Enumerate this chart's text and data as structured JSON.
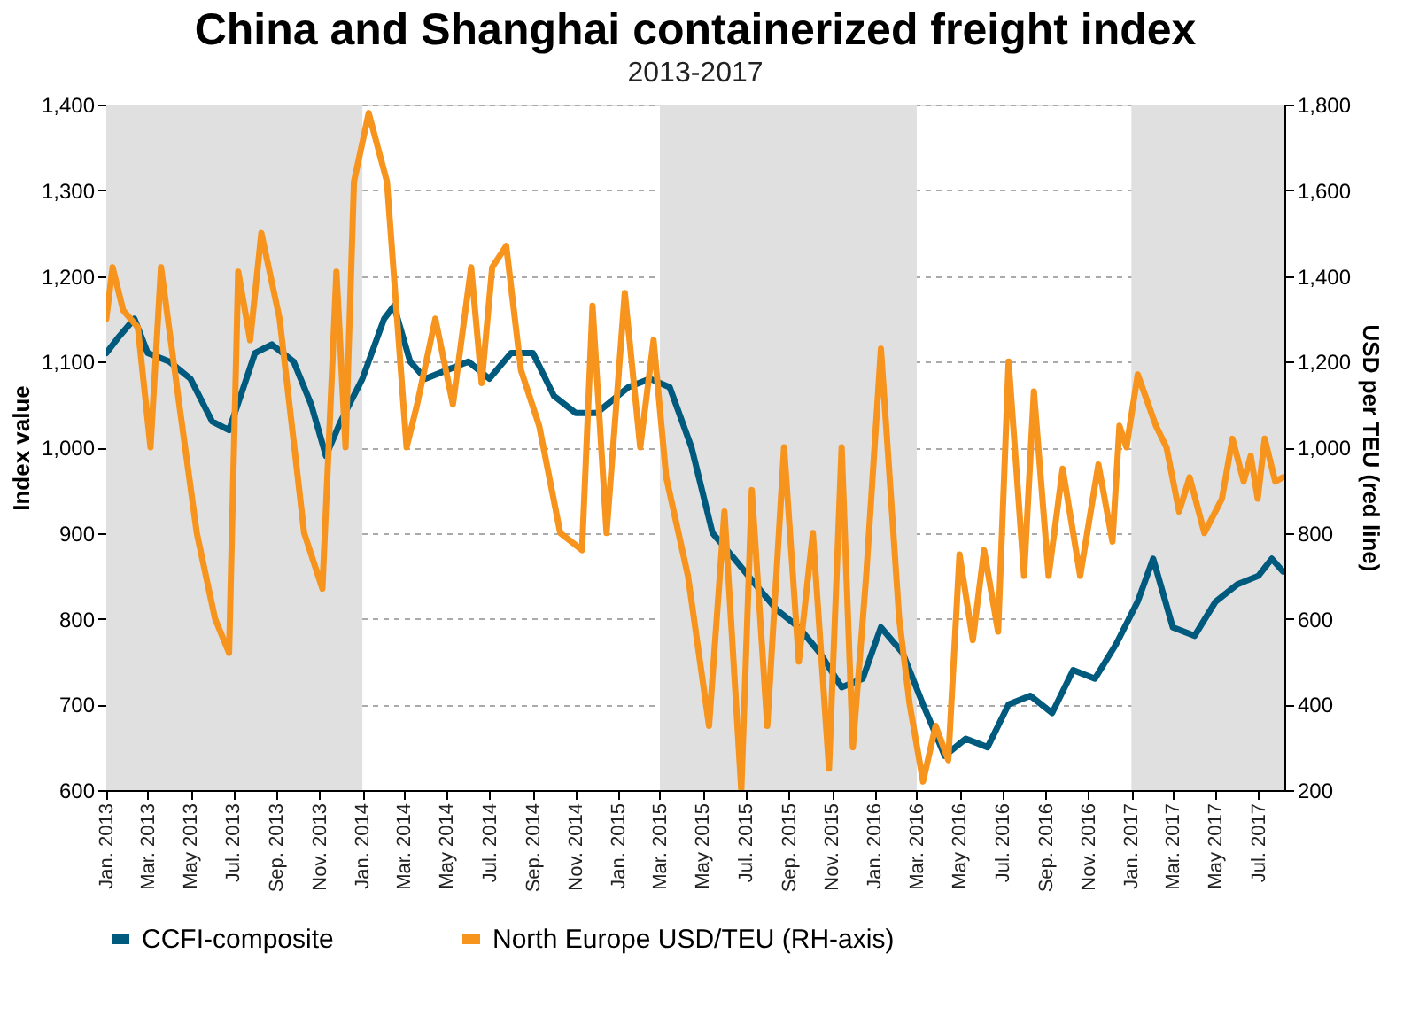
{
  "chart_data": {
    "type": "line",
    "title": "China and Shanghai containerized freight index",
    "subtitle": "2013-2017",
    "ylabel": "Index value",
    "y2label": "USD per TEU (red line)",
    "xlim": [
      "2013-01-01",
      "2017-08-07"
    ],
    "xticks": [
      {
        "value": "2013-01-01",
        "label": "Jan. 2013"
      },
      {
        "value": "2013-03-01",
        "label": "Mar. 2013"
      },
      {
        "value": "2013-05-01",
        "label": "May 2013"
      },
      {
        "value": "2013-07-01",
        "label": "Jul. 2013"
      },
      {
        "value": "2013-09-01",
        "label": "Sep. 2013"
      },
      {
        "value": "2013-11-01",
        "label": "Nov. 2013"
      },
      {
        "value": "2014-01-01",
        "label": "Jan. 2014"
      },
      {
        "value": "2014-03-01",
        "label": "Mar. 2014"
      },
      {
        "value": "2014-05-01",
        "label": "May 2014"
      },
      {
        "value": "2014-07-01",
        "label": "Jul. 2014"
      },
      {
        "value": "2014-09-01",
        "label": "Sep. 2014"
      },
      {
        "value": "2014-11-01",
        "label": "Nov. 2014"
      },
      {
        "value": "2015-01-01",
        "label": "Jan. 2015"
      },
      {
        "value": "2015-03-01",
        "label": "Mar. 2015"
      },
      {
        "value": "2015-05-01",
        "label": "May 2015"
      },
      {
        "value": "2015-07-01",
        "label": "Jul. 2015"
      },
      {
        "value": "2015-09-01",
        "label": "Sep. 2015"
      },
      {
        "value": "2015-11-01",
        "label": "Nov. 2015"
      },
      {
        "value": "2016-01-01",
        "label": "Jan. 2016"
      },
      {
        "value": "2016-03-01",
        "label": "Mar. 2016"
      },
      {
        "value": "2016-05-01",
        "label": "May 2016"
      },
      {
        "value": "2016-07-01",
        "label": "Jul. 2016"
      },
      {
        "value": "2016-09-01",
        "label": "Sep. 2016"
      },
      {
        "value": "2016-11-01",
        "label": "Nov. 2016"
      },
      {
        "value": "2017-01-01",
        "label": "Jan. 2017"
      },
      {
        "value": "2017-03-01",
        "label": "Mar. 2017"
      },
      {
        "value": "2017-05-01",
        "label": "May 2017"
      },
      {
        "value": "2017-07-01",
        "label": "Jul. 2017"
      }
    ],
    "ylim": [
      600,
      1400
    ],
    "yticks": [
      {
        "value": 600,
        "label": "600"
      },
      {
        "value": 700,
        "label": "700"
      },
      {
        "value": 800,
        "label": "800"
      },
      {
        "value": 900,
        "label": "900"
      },
      {
        "value": 1000,
        "label": "1,000"
      },
      {
        "value": 1100,
        "label": "1,100"
      },
      {
        "value": 1200,
        "label": "1,200"
      },
      {
        "value": 1300,
        "label": "1,300"
      },
      {
        "value": 1400,
        "label": "1,400"
      }
    ],
    "y2lim": [
      200,
      1800
    ],
    "y2ticks": [
      {
        "value": 200,
        "label": "200"
      },
      {
        "value": 400,
        "label": "400"
      },
      {
        "value": 600,
        "label": "600"
      },
      {
        "value": 800,
        "label": "800"
      },
      {
        "value": 1000,
        "label": "1,000"
      },
      {
        "value": 1200,
        "label": "1,200"
      },
      {
        "value": 1400,
        "label": "1,400"
      },
      {
        "value": 1600,
        "label": "1,600"
      },
      {
        "value": 1800,
        "label": "1,800"
      }
    ],
    "grid": "y",
    "legend": "bottom",
    "line_style": "solid",
    "marker": "none",
    "bands": [
      {
        "axis": "x",
        "from": "2013-01-01",
        "to": "2014-01-01",
        "color": "#e0e0e0"
      },
      {
        "axis": "x",
        "from": "2015-03-01",
        "to": "2016-03-01",
        "color": "#e0e0e0"
      },
      {
        "axis": "x",
        "from": "2017-01-01",
        "to": "2017-08-07",
        "color": "#e0e0e0"
      }
    ],
    "series": [
      {
        "name": "CCFI-composite",
        "color": "#005a7e",
        "x": [
          "2013-01-01",
          "2013-01-20",
          "2013-02-10",
          "2013-03-01",
          "2013-04-01",
          "2013-05-01",
          "2013-06-01",
          "2013-06-25",
          "2013-08-01",
          "2013-08-25",
          "2013-09-25",
          "2013-10-20",
          "2013-11-10",
          "2013-12-01",
          "2014-01-01",
          "2014-02-01",
          "2014-02-15",
          "2014-03-10",
          "2014-04-01",
          "2014-05-01",
          "2014-06-01",
          "2014-07-01",
          "2014-08-01",
          "2014-09-01",
          "2014-10-01",
          "2014-11-01",
          "2014-12-01",
          "2015-01-15",
          "2015-02-15",
          "2015-03-15",
          "2015-04-15",
          "2015-05-15",
          "2015-06-15",
          "2015-07-15",
          "2015-08-15",
          "2015-09-15",
          "2015-10-15",
          "2015-11-15",
          "2015-12-15",
          "2016-01-10",
          "2016-02-10",
          "2016-03-10",
          "2016-04-10",
          "2016-05-10",
          "2016-06-10",
          "2016-07-10",
          "2016-08-10",
          "2016-09-10",
          "2016-10-10",
          "2016-11-10",
          "2016-12-10",
          "2017-01-10",
          "2017-02-01",
          "2017-03-01",
          "2017-04-01",
          "2017-05-01",
          "2017-06-01",
          "2017-07-01",
          "2017-07-20",
          "2017-08-05"
        ],
        "values": [
          1110,
          1130,
          1150,
          1110,
          1100,
          1080,
          1030,
          1020,
          1110,
          1120,
          1100,
          1050,
          990,
          1030,
          1080,
          1150,
          1165,
          1100,
          1080,
          1090,
          1100,
          1080,
          1110,
          1110,
          1060,
          1040,
          1040,
          1070,
          1080,
          1070,
          1000,
          900,
          870,
          840,
          810,
          790,
          760,
          720,
          730,
          790,
          760,
          700,
          640,
          660,
          650,
          700,
          710,
          690,
          740,
          730,
          770,
          820,
          870,
          790,
          780,
          820,
          840,
          850,
          870,
          855
        ]
      },
      {
        "name": "North Europe USD/TEU (RH-axis)",
        "color": "#f7941d",
        "axis": "y2",
        "x": [
          "2013-01-01",
          "2013-01-10",
          "2013-01-25",
          "2013-02-15",
          "2013-03-05",
          "2013-03-20",
          "2013-04-15",
          "2013-05-10",
          "2013-06-05",
          "2013-06-25",
          "2013-07-08",
          "2013-07-25",
          "2013-08-10",
          "2013-09-05",
          "2013-10-10",
          "2013-11-05",
          "2013-11-25",
          "2013-12-08",
          "2013-12-20",
          "2014-01-10",
          "2014-02-05",
          "2014-03-05",
          "2014-03-20",
          "2014-04-15",
          "2014-05-10",
          "2014-06-05",
          "2014-06-20",
          "2014-07-05",
          "2014-07-25",
          "2014-08-15",
          "2014-09-10",
          "2014-10-10",
          "2014-11-10",
          "2014-11-25",
          "2014-12-15",
          "2015-01-10",
          "2015-02-01",
          "2015-02-20",
          "2015-03-10",
          "2015-04-10",
          "2015-05-10",
          "2015-06-01",
          "2015-06-25",
          "2015-07-10",
          "2015-08-01",
          "2015-08-25",
          "2015-09-15",
          "2015-10-05",
          "2015-10-28",
          "2015-11-15",
          "2015-12-01",
          "2015-12-20",
          "2016-01-10",
          "2016-02-05",
          "2016-02-20",
          "2016-03-10",
          "2016-03-28",
          "2016-04-15",
          "2016-05-01",
          "2016-05-20",
          "2016-06-05",
          "2016-06-25",
          "2016-07-10",
          "2016-08-01",
          "2016-08-15",
          "2016-09-05",
          "2016-09-25",
          "2016-10-20",
          "2016-11-15",
          "2016-12-05",
          "2016-12-15",
          "2016-12-25",
          "2017-01-10",
          "2017-02-05",
          "2017-02-20",
          "2017-03-10",
          "2017-03-25",
          "2017-04-15",
          "2017-05-10",
          "2017-05-25",
          "2017-06-10",
          "2017-06-20",
          "2017-06-30",
          "2017-07-10",
          "2017-07-25",
          "2017-08-05"
        ],
        "values": [
          1300,
          1420,
          1320,
          1280,
          1000,
          1420,
          1100,
          800,
          600,
          520,
          1410,
          1250,
          1500,
          1300,
          800,
          670,
          1410,
          1000,
          1620,
          1780,
          1620,
          1000,
          1100,
          1300,
          1100,
          1420,
          1150,
          1420,
          1470,
          1180,
          1050,
          800,
          760,
          1330,
          800,
          1360,
          1000,
          1250,
          930,
          700,
          350,
          850,
          200,
          900,
          350,
          1000,
          500,
          800,
          250,
          1000,
          300,
          700,
          1230,
          600,
          400,
          220,
          350,
          270,
          750,
          550,
          760,
          570,
          1200,
          700,
          1130,
          700,
          950,
          700,
          960,
          780,
          1050,
          1000,
          1170,
          1050,
          1000,
          850,
          930,
          800,
          880,
          1020,
          920,
          980,
          880,
          1020,
          920,
          930
        ]
      }
    ]
  }
}
